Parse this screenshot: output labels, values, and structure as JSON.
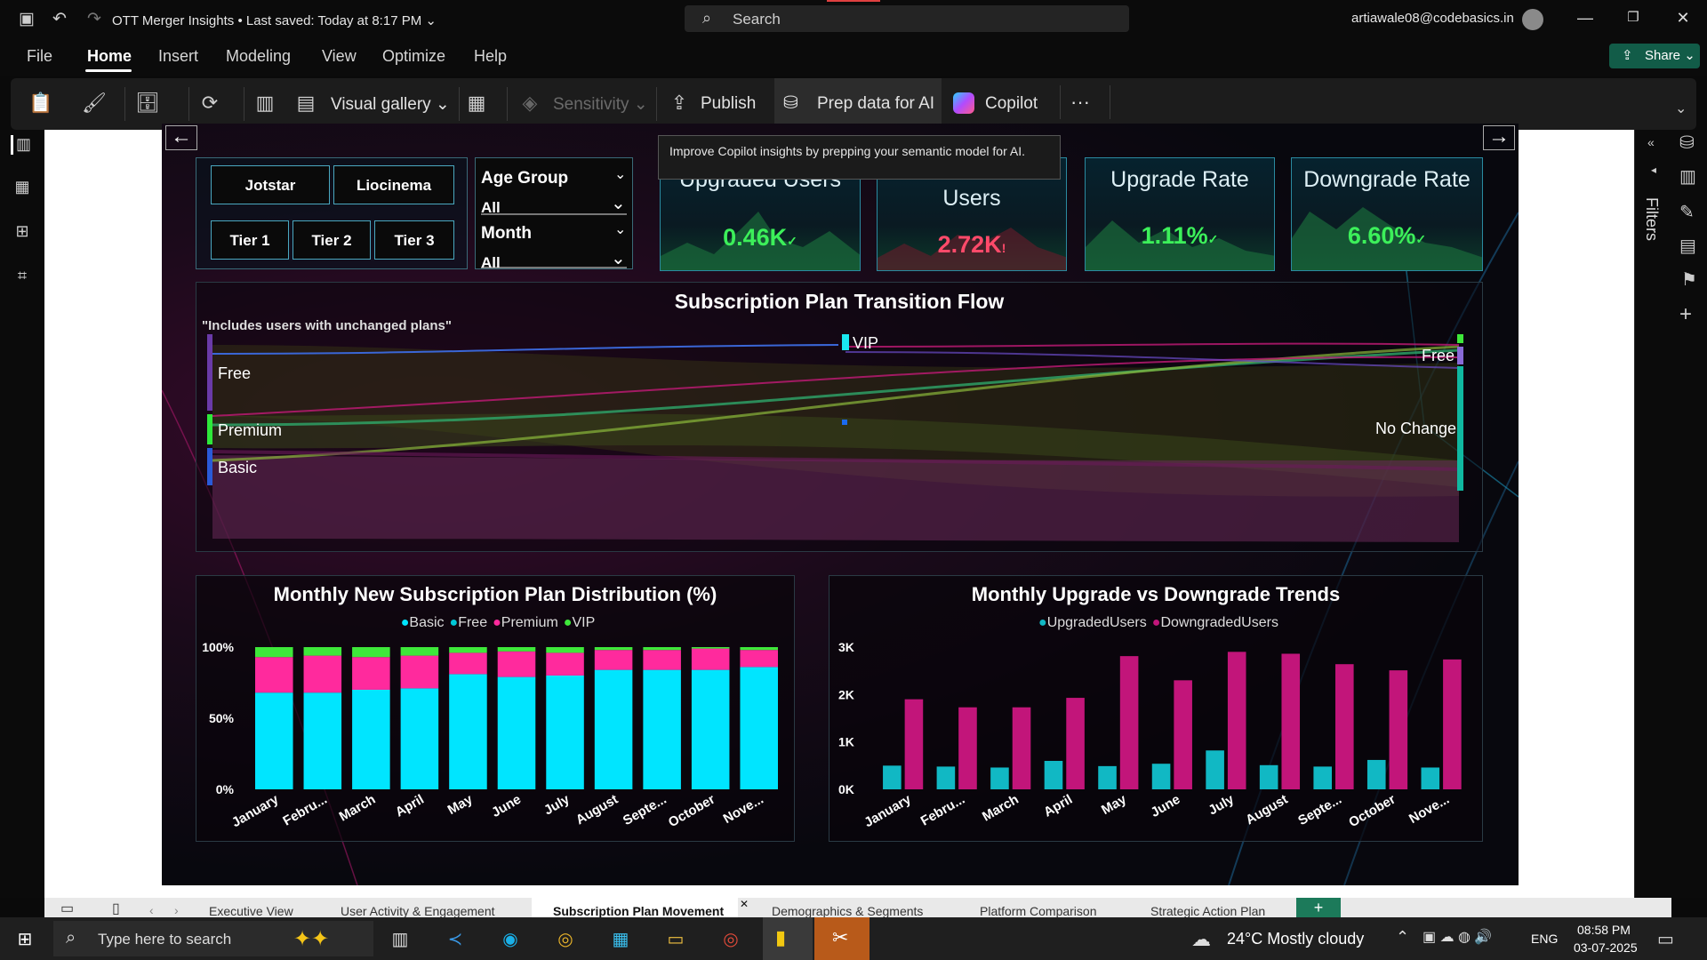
{
  "app": {
    "title": "OTT Merger Insights",
    "saved": "Last saved: Today at 8:17 PM",
    "search_placeholder": "Search",
    "user": "artiawale08@codebasics.in"
  },
  "menu": [
    "File",
    "Home",
    "Insert",
    "Modeling",
    "View",
    "Optimize",
    "Help"
  ],
  "share_label": "Share",
  "ribbon": {
    "visual_gallery": "Visual gallery",
    "sensitivity": "Sensitivity",
    "publish": "Publish",
    "prep": "Prep data for AI",
    "copilot": "Copilot",
    "more": "···"
  },
  "tooltip": "Improve Copilot insights by prepping your semantic model for AI.",
  "filters_label": "Filters",
  "slicers": {
    "platforms": [
      "Jotstar",
      "Liocinema"
    ],
    "tiers": [
      "Tier 1",
      "Tier 2",
      "Tier 3"
    ],
    "age_group_label": "Age Group",
    "age_group_value": "All",
    "month_label": "Month",
    "month_value": "All"
  },
  "kpis": [
    {
      "title": "Upgraded Users",
      "value": "0.46K",
      "color": "#3cf05a"
    },
    {
      "title": "Downgraded Users",
      "value": "2.72K",
      "color": "#ff4a6a"
    },
    {
      "title": "Upgrade Rate",
      "value": "1.11%",
      "color": "#3cf05a"
    },
    {
      "title": "Downgrade Rate",
      "value": "6.60%",
      "color": "#3cf05a"
    }
  ],
  "sankey": {
    "title": "Subscription Plan Transition Flow",
    "note": "\"Includes users with unchanged plans\"",
    "left_nodes": [
      "Free",
      "Premium",
      "Basic"
    ],
    "mid_node": "VIP",
    "right_nodes": [
      "Free",
      "No Change"
    ]
  },
  "chart_data": [
    {
      "type": "bar",
      "stacked": true,
      "title": "Monthly New Subscription Plan Distribution (%)",
      "categories": [
        "January",
        "Febru...",
        "March",
        "April",
        "May",
        "June",
        "July",
        "August",
        "Septe...",
        "October",
        "Nove..."
      ],
      "series": [
        {
          "name": "Basic",
          "color": "#00e5ff",
          "values": [
            68,
            68,
            70,
            71,
            81,
            79,
            80,
            84,
            84,
            84,
            86
          ]
        },
        {
          "name": "Free",
          "color": "#00c8d8",
          "values": [
            0,
            0,
            0,
            0,
            0,
            0,
            0,
            0,
            0,
            0,
            0
          ]
        },
        {
          "name": "Premium",
          "color": "#ff2a9d",
          "values": [
            25,
            26,
            23,
            23,
            15,
            18,
            16,
            14,
            14,
            15,
            12
          ]
        },
        {
          "name": "VIP",
          "color": "#3ee83a",
          "values": [
            7,
            6,
            7,
            6,
            4,
            3,
            4,
            2,
            2,
            1,
            2
          ]
        }
      ],
      "ylim": [
        0,
        100
      ],
      "yticks": [
        "0%",
        "50%",
        "100%"
      ],
      "legend": "top"
    },
    {
      "type": "bar",
      "title": "Monthly Upgrade vs Downgrade Trends",
      "categories": [
        "January",
        "Febru...",
        "March",
        "April",
        "May",
        "June",
        "July",
        "August",
        "Septe...",
        "October",
        "Nove..."
      ],
      "series": [
        {
          "name": "UpgradedUsers",
          "color": "#11b8c4",
          "values": [
            500,
            480,
            460,
            600,
            490,
            540,
            820,
            510,
            480,
            620,
            460
          ]
        },
        {
          "name": "DowngradedUsers",
          "color": "#c2157a",
          "values": [
            1900,
            1730,
            1730,
            1930,
            2810,
            2300,
            2900,
            2860,
            2640,
            2510,
            2740
          ]
        }
      ],
      "ylim": [
        0,
        3000
      ],
      "yticks": [
        "0K",
        "1K",
        "2K",
        "3K"
      ],
      "legend": "top"
    }
  ],
  "tabs": [
    "Executive View",
    "User Activity & Engagement",
    "Subscription Plan Movement",
    "Demographics & Segments",
    "Platform Comparison",
    "Strategic Action Plan"
  ],
  "taskbar": {
    "search": "Type here to search",
    "weather": "24°C  Mostly cloudy",
    "lang": "ENG",
    "time": "08:58 PM",
    "date": "03-07-2025"
  }
}
